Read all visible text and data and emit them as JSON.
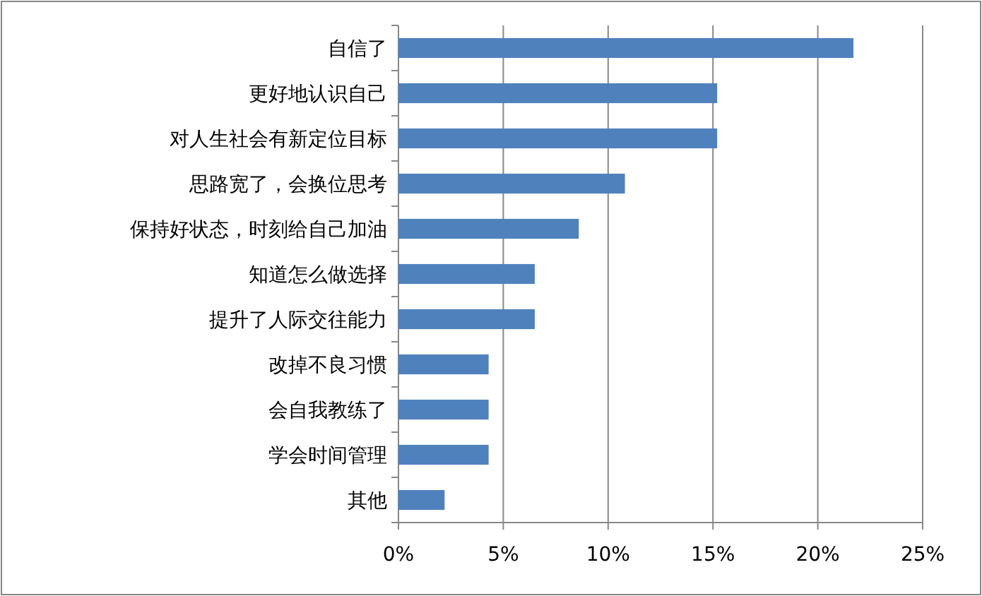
{
  "chart_data": {
    "type": "bar",
    "orientation": "horizontal",
    "categories": [
      "自信了",
      "更好地认识自己",
      "对人生社会有新定位目标",
      "思路宽了，会换位思考",
      "保持好状态，时刻给自己加油",
      "知道怎么做选择",
      "提升了人际交往能力",
      "改掉不良习惯",
      "会自我教练了",
      "学会时间管理",
      "其他"
    ],
    "values": [
      21.7,
      15.2,
      15.2,
      10.8,
      8.6,
      6.5,
      6.5,
      4.3,
      4.3,
      4.3,
      2.2
    ],
    "color": "#4f81bd",
    "xlim": [
      0,
      25
    ],
    "xticks": [
      {
        "value": 0,
        "label": "0%"
      },
      {
        "value": 5,
        "label": "5%"
      },
      {
        "value": 10,
        "label": "10%"
      },
      {
        "value": 15,
        "label": "15%"
      },
      {
        "value": 20,
        "label": "20%"
      },
      {
        "value": 25,
        "label": "25%"
      }
    ],
    "grid": "x"
  }
}
